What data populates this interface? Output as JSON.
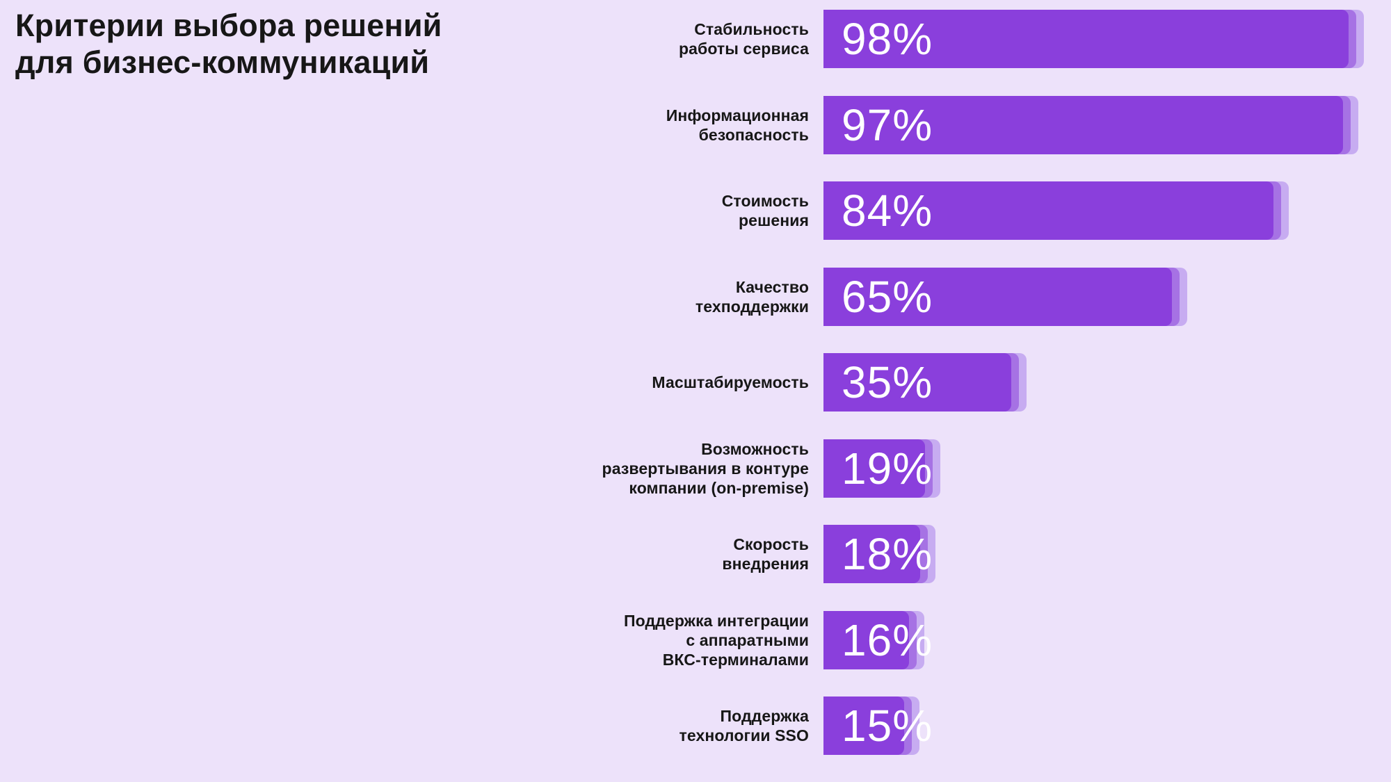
{
  "title": "Критерии выбора решений\nдля бизнес-коммуникаций",
  "colors": {
    "background": "#EDE2FA",
    "bar_main": "#8A3FDC",
    "bar_layer_mid": "#A672E4",
    "bar_layer_light": "#C7ACF1",
    "text": "#171717",
    "value_text": "#FFFFFF"
  },
  "chart_data": {
    "type": "bar",
    "orientation": "horizontal",
    "title": "Критерии выбора решений для бизнес-коммуникаций",
    "xlabel": "",
    "ylabel": "",
    "xlim": [
      0,
      100
    ],
    "grid": false,
    "legend": false,
    "unit": "%",
    "categories": [
      "Стабильность\nработы сервиса",
      "Информационная\nбезопасность",
      "Стоимость\nрешения",
      "Качество\nтехподдержки",
      "Масштабируемость",
      "Возможность\nразвертывания в контуре\nкомпании (on-premise)",
      "Скорость\nвнедрения",
      "Поддержка интеграции\nс аппаратными\nВКС-терминалами",
      "Поддержка\nтехнологии SSO"
    ],
    "values": [
      98,
      97,
      84,
      65,
      35,
      19,
      18,
      16,
      15
    ],
    "value_labels": [
      "98%",
      "97%",
      "84%",
      "65%",
      "35%",
      "19%",
      "18%",
      "16%",
      "15%"
    ]
  }
}
